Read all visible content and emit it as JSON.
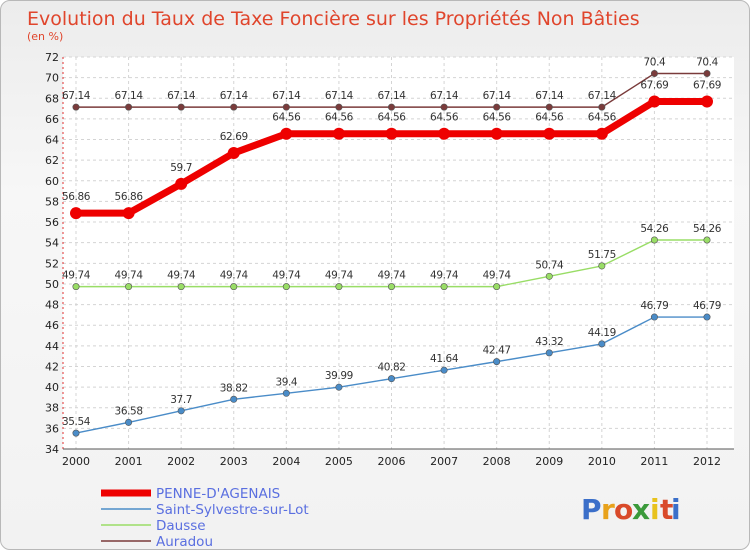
{
  "chart_data": {
    "type": "line",
    "title": "Evolution du Taux de Taxe Foncière sur les Propriétés Non Bâties",
    "subtitle": "(en %)",
    "xlabel": "",
    "ylabel": "",
    "ylim": [
      34,
      72
    ],
    "ytick_step": 2,
    "grid": true,
    "legend_position": "bottom-left",
    "categories": [
      "2000",
      "2001",
      "2002",
      "2003",
      "2004",
      "2005",
      "2006",
      "2007",
      "2008",
      "2009",
      "2010",
      "2011",
      "2012"
    ],
    "series": [
      {
        "name": "Auradou",
        "color": "#7a3b3b",
        "values": [
          67.14,
          67.14,
          67.14,
          67.14,
          67.14,
          67.14,
          67.14,
          67.14,
          67.14,
          67.14,
          67.14,
          70.4,
          70.4
        ],
        "labels": [
          "67.14",
          "67.14",
          "67.14",
          "67.14",
          "67.14",
          "67.14",
          "67.14",
          "67.14",
          "67.14",
          "67.14",
          "67.14",
          "70.4",
          "70.4"
        ]
      },
      {
        "name": "PENNE-D'AGENAIS",
        "color": "#ee0000",
        "values": [
          56.86,
          56.86,
          59.7,
          62.69,
          64.56,
          64.56,
          64.56,
          64.56,
          64.56,
          64.56,
          64.56,
          67.69,
          67.69
        ],
        "labels": [
          "56.86",
          "56.86",
          "59.7",
          "62.69",
          "64.56",
          "64.56",
          "64.56",
          "64.56",
          "64.56",
          "64.56",
          "64.56",
          "67.69",
          "67.69"
        ]
      },
      {
        "name": "Dausse",
        "color": "#99dd66",
        "values": [
          49.74,
          49.74,
          49.74,
          49.74,
          49.74,
          49.74,
          49.74,
          49.74,
          49.74,
          50.74,
          51.75,
          54.26,
          54.26
        ],
        "labels": [
          "49.74",
          "49.74",
          "49.74",
          "49.74",
          "49.74",
          "49.74",
          "49.74",
          "49.74",
          "49.74",
          "50.74",
          "51.75",
          "54.26",
          "54.26"
        ]
      },
      {
        "name": "Saint-Sylvestre-sur-Lot",
        "color": "#4a8cc8",
        "values": [
          35.54,
          36.58,
          37.7,
          38.82,
          39.4,
          39.99,
          40.82,
          41.64,
          42.47,
          43.32,
          44.19,
          46.79,
          46.79
        ],
        "labels": [
          "35.54",
          "36.58",
          "37.7",
          "38.82",
          "39.4",
          "39.99",
          "40.82",
          "41.64",
          "42.47",
          "43.32",
          "44.19",
          "46.79",
          "46.79"
        ]
      }
    ],
    "legend": [
      "PENNE-D'AGENAIS",
      "Saint-Sylvestre-sur-Lot",
      "Dausse",
      "Auradou"
    ]
  },
  "branding": {
    "logo_letters": [
      "P",
      "r",
      "o",
      "x",
      "i",
      "t",
      "i"
    ],
    "logo_colors": [
      "#3b6fc9",
      "#e8a21c",
      "#d94a2a",
      "#3b9a3b",
      "#e8c21c",
      "#d94a2a",
      "#3b6fc9"
    ]
  }
}
